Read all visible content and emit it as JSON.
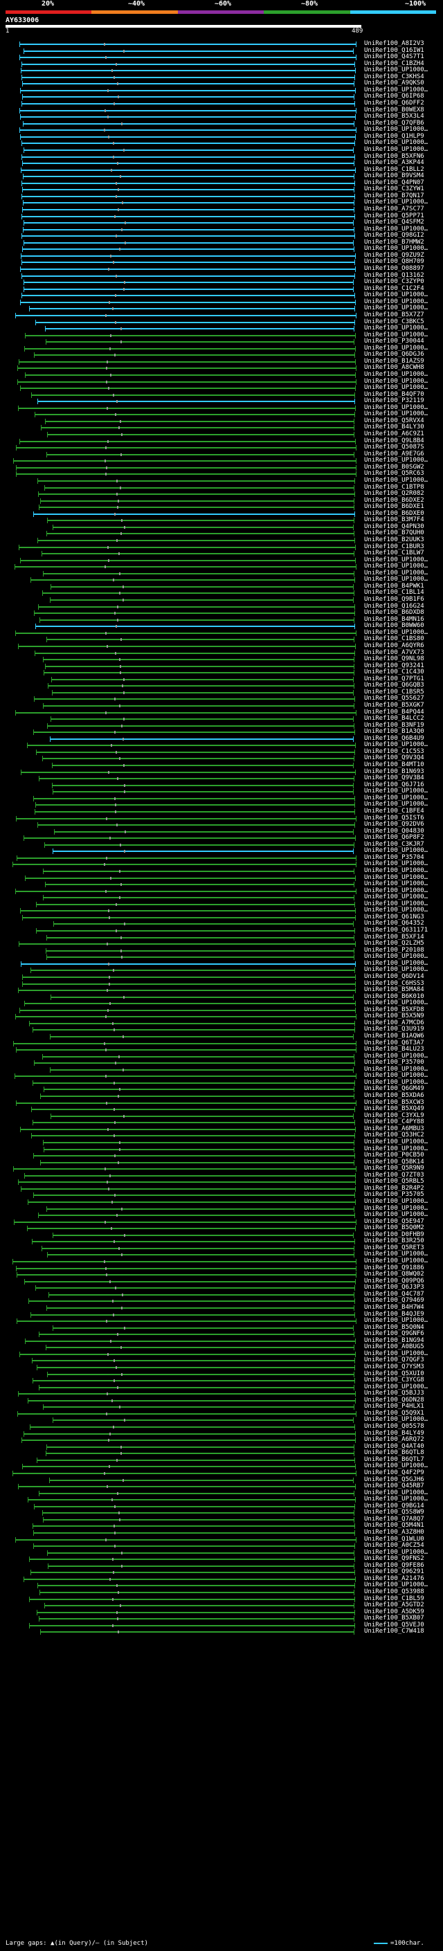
{
  "legend": {
    "labels": [
      "20%",
      "~40%",
      "~60%",
      "~80%",
      "~100%"
    ],
    "colors": [
      "#e01e1e",
      "#f07d1e",
      "#8c2ca0",
      "#2ca02c",
      "#33ccff"
    ]
  },
  "query": {
    "id": "AY633006",
    "start": "1",
    "end": "489"
  },
  "hit_colors": {
    "high": "#33ccff",
    "mid": "#2ca02c",
    "low": "#8c2ca0"
  },
  "hits": [
    "UniRef100_A8I2V3",
    "UniRef100_Q16IW1",
    "UniRef100_Q4S7T1",
    "UniRef100_C1BZH4",
    "UniRef100_UP1000…",
    "UniRef100_C3KHS4",
    "UniRef100_A9QKS0",
    "UniRef100_UP1000…",
    "UniRef100_Q6IP68",
    "UniRef100_Q6DFF2",
    "UniRef100_B0WEX8",
    "UniRef100_B5X3L4",
    "UniRef100_Q7QFB6",
    "UniRef100_UP1000…",
    "UniRef100_Q1HLP9",
    "UniRef100_UP1000…",
    "UniRef100_UP1000…",
    "UniRef100_B5XFN6",
    "UniRef100_A3KP44",
    "UniRef100_C1BLL2",
    "UniRef100_B9VSM4",
    "UniRef100_Q4PN07",
    "UniRef100_C3ZYW1",
    "UniRef100_B7QN17",
    "UniRef100_UP1000…",
    "UniRef100_A7SC77",
    "UniRef100_Q5PP71",
    "UniRef100_Q4SFM2",
    "UniRef100_UP1000…",
    "UniRef100_Q98GI2",
    "UniRef100_B7HMW2",
    "UniRef100_UP1000…",
    "UniRef100_Q9ZU9Z",
    "UniRef100_Q8H709",
    "UniRef100_O08897",
    "UniRef100_Q13162",
    "UniRef100_C3ZYP0",
    "UniRef100_C1C2F4",
    "UniRef100_UP1000…",
    "UniRef100_UP1000…",
    "UniRef100_UP1000…",
    "UniRef100_B5X7Z7",
    "UniRef100_C3BKC5",
    "UniRef100_UP1000…",
    "UniRef100_UP1000…",
    "UniRef100_P30044",
    "UniRef100_UP1000…",
    "UniRef100_Q6DGJ6",
    "UniRef100_B1AZS9",
    "UniRef100_A8CWH8",
    "UniRef100_UP1000…",
    "UniRef100_UP1000…",
    "UniRef100_UP1000…",
    "UniRef100_B4QF70",
    "UniRef100_P32119",
    "UniRef100_UP1000…",
    "UniRef100_UP1000…",
    "UniRef100_Q5RVX4",
    "UniRef100_B4LY30",
    "UniRef100_A6C9Z1",
    "UniRef100_Q9L8B4",
    "UniRef100_Q5087S",
    "UniRef100_A9E7G6",
    "UniRef100_UP1000…",
    "UniRef100_B0SGW2",
    "UniRef100_Q5RC63",
    "UniRef100_UP1000…",
    "UniRef100_C1BTP8",
    "UniRef100_Q2R082",
    "UniRef100_B6DXE2",
    "UniRef100_B6DXE1",
    "UniRef100_B6DXE0",
    "UniRef100_B3M7F4",
    "UniRef100_Q4PN30",
    "UniRef100_B7QUH0",
    "UniRef100_B2UUK3",
    "UniRef100_C1BUR3",
    "UniRef100_C1BLW7",
    "UniRef100_UP1000…",
    "UniRef100_UP1000…",
    "UniRef100_UP1000…",
    "UniRef100_UP1000…",
    "UniRef100_B4PWK1",
    "UniRef100_C1BL14",
    "UniRef100_Q9B1F6",
    "UniRef100_Q16G24",
    "UniRef100_B6DXD8",
    "UniRef100_B4MN16",
    "UniRef100_B0WW60",
    "UniRef100_UP1000…",
    "UniRef100_C1BS80",
    "UniRef100_A6QYR6",
    "UniRef100_A7VX73",
    "UniRef100_Q9NL98",
    "UniRef100_Q93241",
    "UniRef100_C1C430",
    "UniRef100_Q7PTG1",
    "UniRef100_Q6GQB3",
    "UniRef100_C1BSR5",
    "UniRef100_Q5S627",
    "UniRef100_B5XGK7",
    "UniRef100_B4PQ44",
    "UniRef100_B4LCC2",
    "UniRef100_B3NF19",
    "UniRef100_B1A3Q0",
    "UniRef100_Q6B4U9",
    "UniRef100_UP1000…",
    "UniRef100_C1C5S3",
    "UniRef100_Q9V3Q4",
    "UniRef100_B4MT10",
    "UniRef100_B1N693",
    "UniRef100_Q9V3B4",
    "UniRef100_Q6J716",
    "UniRef100_UP1000…",
    "UniRef100_UP1000…",
    "UniRef100_UP1000…",
    "UniRef100_C1BFE4",
    "UniRef100_Q5IST6",
    "UniRef100_Q92DV6",
    "UniRef100_Q04830",
    "UniRef100_Q6P8F2",
    "UniRef100_C3KJR7",
    "UniRef100_UP1000…",
    "UniRef100_P35704",
    "UniRef100_UP1000…",
    "UniRef100_UP1000…",
    "UniRef100_UP1000…",
    "UniRef100_UP1000…",
    "UniRef100_UP1000…",
    "UniRef100_UP1000…",
    "UniRef100_UP1000…",
    "UniRef100_UP1000…",
    "UniRef100_Q61NG3",
    "UniRef100_Q64352",
    "UniRef100_Q631171",
    "UniRef100_B5XF14",
    "UniRef100_Q2LZH5",
    "UniRef100_P20108",
    "UniRef100_UP1000…",
    "UniRef100_UP1000…",
    "UniRef100_UP1000…",
    "UniRef100_Q6DV14",
    "UniRef100_C6HSS3",
    "UniRef100_B5MA84",
    "UniRef100_B6K010",
    "UniRef100_UP1000…",
    "UniRef100_B5XFD8",
    "UniRef100_B5X5N9",
    "UniRef100_A7MCD6",
    "UniRef100_Q3U919",
    "UniRef100_B1AQW6",
    "UniRef100_Q6T3A7",
    "UniRef100_B4LU23",
    "UniRef100_UP1000…",
    "UniRef100_P35700",
    "UniRef100_UP1000…",
    "UniRef100_UP1000…",
    "UniRef100_UP1000…",
    "UniRef100_Q6GM49",
    "UniRef100_B5XDA6",
    "UniRef100_B5XCW3",
    "UniRef100_B5XQ49",
    "UniRef100_C3YXL9",
    "UniRef100_C4PY88",
    "UniRef100_A6MBU3",
    "UniRef100_Q53HC2",
    "UniRef100_UP1000…",
    "UniRef100_UP1000…",
    "UniRef100_P0CB50",
    "UniRef100_Q5BK14",
    "UniRef100_Q5R9N9",
    "UniRef100_Q7ZT03",
    "UniRef100_Q5RBL5",
    "UniRef100_B2R4P2",
    "UniRef100_P35705",
    "UniRef100_UP1000…",
    "UniRef100_UP1000…",
    "UniRef100_UP1000…",
    "UniRef100_Q5E947",
    "UniRef100_B5Q0M2",
    "UniRef100_D0FHB9",
    "UniRef100_B3R250",
    "UniRef100_Q5RET3",
    "UniRef100_UP1000…",
    "UniRef100_UP1000…",
    "UniRef100_Q91886",
    "UniRef100_Q8WQ02",
    "UniRef100_Q09PQ6",
    "UniRef100_Q6J3P3",
    "UniRef100_Q4C787",
    "UniRef100_Q79469",
    "UniRef100_B4H7W4",
    "UniRef100_B4QJE9",
    "UniRef100_UP1000…",
    "UniRef100_B5Q0N4",
    "UniRef100_Q9GNF6",
    "UniRef100_B1NG94",
    "UniRef100_A0BUG5",
    "UniRef100_UP1000…",
    "UniRef100_Q7QGF3",
    "UniRef100_Q7YSM3",
    "UniRef100_Q5XUI0",
    "UniRef100_C3YCG8",
    "UniRef100_UP1000…",
    "UniRef100_Q5BJJ3",
    "UniRef100_Q6DN28",
    "UniRef100_P4HLX1",
    "UniRef100_Q5Q9X1",
    "UniRef100_UP1000…",
    "UniRef100_Q05S78",
    "UniRef100_B4LY49",
    "UniRef100_A6RQ72",
    "UniRef100_Q4AT40",
    "UniRef100_B6QTL8",
    "UniRef100_B6QTL7",
    "UniRef100_UP1000…",
    "UniRef100_Q4F2P9",
    "UniRef100_Q5GJH6",
    "UniRef100_Q45RB7",
    "UniRef100_UP1000…",
    "UniRef100_UP1000…",
    "UniRef100_Q9BG14",
    "UniRef100_Q5S8W9",
    "UniRef100_Q7A8Q7",
    "UniRef100_Q5M4N1",
    "UniRef100_A3Z8H0",
    "UniRef100_Q1WLU0",
    "UniRef100_A0CZ54",
    "UniRef100_UP1000…",
    "UniRef100_Q9FNS2",
    "UniRef100_Q9FE86",
    "UniRef100_Q96291",
    "UniRef100_A21476",
    "UniRef100_UP1000…",
    "UniRef100_Q53988",
    "UniRef100_C1BL59",
    "UniRef100_A5GTD2",
    "UniRef100_A5DK59",
    "UniRef100_B5XB07",
    "UniRef100_Q5VEJ0",
    "UniRef100_C7W418"
  ],
  "footer": {
    "text": "Large gaps: ▲(in Query)/– (in Subject)",
    "scale": "=100char."
  }
}
